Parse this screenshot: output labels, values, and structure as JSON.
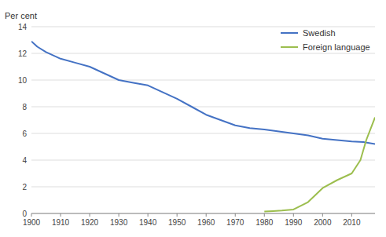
{
  "chart_data": {
    "type": "line",
    "ylabel": "Per cent",
    "series": [
      {
        "name": "Swedish",
        "color": "#4472c4",
        "x": [
          1900,
          1902,
          1905,
          1910,
          1915,
          1920,
          1925,
          1930,
          1935,
          1940,
          1945,
          1950,
          1955,
          1960,
          1965,
          1970,
          1975,
          1980,
          1985,
          1990,
          1995,
          2000,
          2005,
          2010,
          2014,
          2018
        ],
        "values": [
          12.9,
          12.5,
          12.1,
          11.6,
          11.3,
          11.0,
          10.5,
          10.0,
          9.8,
          9.6,
          9.1,
          8.6,
          8.0,
          7.4,
          7.0,
          6.6,
          6.4,
          6.3,
          6.15,
          6.0,
          5.85,
          5.6,
          5.5,
          5.4,
          5.35,
          5.2
        ]
      },
      {
        "name": "Foreign language",
        "color": "#9cbe4e",
        "x": [
          1980,
          1983,
          1986,
          1990,
          1995,
          2000,
          2005,
          2010,
          2013,
          2015,
          2018
        ],
        "values": [
          0.15,
          0.18,
          0.22,
          0.3,
          0.85,
          1.9,
          2.5,
          3.0,
          4.0,
          5.5,
          7.2
        ]
      }
    ],
    "xlim": [
      1900,
      2018
    ],
    "ylim": [
      0,
      14
    ],
    "xticks": [
      1900,
      1910,
      1920,
      1930,
      1940,
      1950,
      1960,
      1970,
      1980,
      1990,
      2000,
      2010
    ],
    "yticks": [
      0,
      2,
      4,
      6,
      8,
      10,
      12,
      14
    ],
    "grid": true,
    "legend": "upper right"
  }
}
